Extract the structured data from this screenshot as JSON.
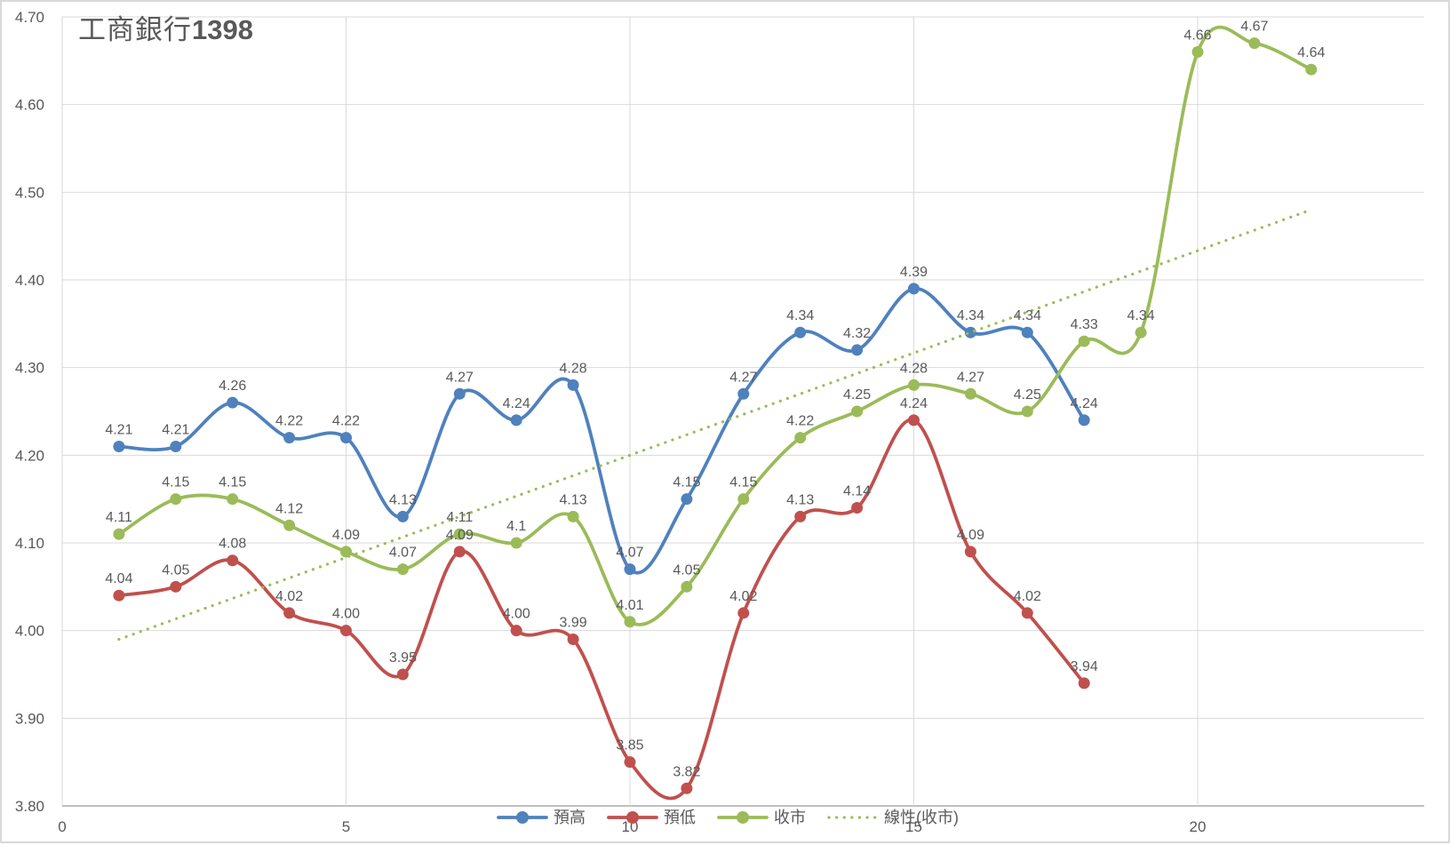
{
  "title": {
    "name_part": "工商銀行",
    "code_part": "1398",
    "color": "#595959"
  },
  "colors": {
    "gridline": "#d9d9d9",
    "axis_line": "#bfbfbf",
    "tick_label": "#595959",
    "data_label": "#595959",
    "legend_label": "#595959",
    "background": "#ffffff",
    "border": "#d9d9d9"
  },
  "chart_data": {
    "type": "line",
    "title": "工商銀行1398",
    "xlabel": "",
    "ylabel": "",
    "grid": true,
    "legend_position": "bottom-center",
    "x_axis": {
      "min": 0,
      "max": 24,
      "ticks": [
        0,
        5,
        10,
        15,
        20
      ],
      "tick_labels": [
        "0",
        "5",
        "10",
        "15",
        "20"
      ]
    },
    "y_axis": {
      "min": 3.8,
      "max": 4.7,
      "step": 0.1,
      "tick_labels": [
        "3.80",
        "3.90",
        "4.00",
        "4.10",
        "4.20",
        "4.30",
        "4.40",
        "4.50",
        "4.60",
        "4.70"
      ]
    },
    "series": [
      {
        "key": "high",
        "name": "預高",
        "color": "#4f81bd",
        "marker": "circle",
        "smooth": true,
        "x": [
          1,
          2,
          3,
          4,
          5,
          6,
          7,
          8,
          9,
          10,
          11,
          12,
          13,
          14,
          15,
          16,
          17,
          18
        ],
        "values": [
          4.21,
          4.21,
          4.26,
          4.22,
          4.22,
          4.13,
          4.27,
          4.24,
          4.28,
          4.07,
          4.15,
          4.27,
          4.34,
          4.32,
          4.39,
          4.34,
          4.34,
          4.24
        ],
        "labels": [
          "4.21",
          "4.21",
          "4.26",
          "4.22",
          "4.22",
          "4.13",
          "4.27",
          "4.24",
          "4.28",
          "4.07",
          "4.15",
          "4.27",
          "4.34",
          "4.32",
          "4.39",
          "4.34",
          "4.34",
          "4.24"
        ]
      },
      {
        "key": "low",
        "name": "預低",
        "color": "#c0504d",
        "marker": "circle",
        "smooth": true,
        "x": [
          1,
          2,
          3,
          4,
          5,
          6,
          7,
          8,
          9,
          10,
          11,
          12,
          13,
          14,
          15,
          16,
          17,
          18
        ],
        "values": [
          4.04,
          4.05,
          4.08,
          4.02,
          4.0,
          3.95,
          4.09,
          4.0,
          3.99,
          3.85,
          3.82,
          4.02,
          4.13,
          4.14,
          4.24,
          4.09,
          4.02,
          3.94
        ],
        "labels": [
          "4.04",
          "4.05",
          "4.08",
          "4.02",
          "4.00",
          "3.95",
          "4.09",
          "4.00",
          "3.99",
          "3.85",
          "3.82",
          "4.02",
          "4.13",
          "4.14",
          "4.24",
          "4.09",
          "4.02",
          "3.94"
        ]
      },
      {
        "key": "close",
        "name": "收市",
        "color": "#9bbb59",
        "marker": "circle",
        "smooth": true,
        "x": [
          1,
          2,
          3,
          4,
          5,
          6,
          7,
          8,
          9,
          10,
          11,
          12,
          13,
          14,
          15,
          16,
          17,
          18,
          19,
          20,
          21,
          22
        ],
        "values": [
          4.11,
          4.15,
          4.15,
          4.12,
          4.09,
          4.07,
          4.11,
          4.1,
          4.13,
          4.01,
          4.05,
          4.15,
          4.22,
          4.25,
          4.28,
          4.27,
          4.25,
          4.33,
          4.34,
          4.66,
          4.67,
          4.64
        ],
        "labels": [
          "4.11",
          "4.15",
          "4.15",
          "4.12",
          "4.09",
          "4.07",
          "4.11",
          "4.1",
          "4.13",
          "4.01",
          "4.05",
          "4.15",
          "4.22",
          "4.25",
          "4.28",
          "4.27",
          "4.25",
          "4.33",
          "4.34",
          "4.66",
          "4.67",
          "4.64"
        ]
      }
    ],
    "trendline": {
      "key": "trend-close",
      "name": "線性(收市)",
      "color": "#9bbb59",
      "style": "dotted",
      "x1": 1,
      "v1": 3.99,
      "x2": 22,
      "v2": 4.48
    },
    "legend": [
      "預高",
      "預低",
      "收市",
      "線性(收市)"
    ]
  }
}
